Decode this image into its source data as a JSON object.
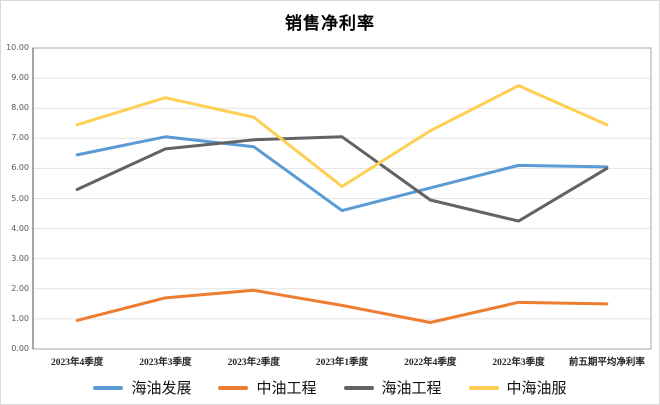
{
  "chart_data": {
    "type": "line",
    "title": "销售净利率",
    "categories": [
      "2023年4季度",
      "2023年3季度",
      "2023年2季度",
      "2023年1季度",
      "2022年4季度",
      "2022年3季度",
      "前五期平均净利率"
    ],
    "series": [
      {
        "name": "海油发展",
        "color": "#5B9BD5",
        "values": [
          6.45,
          7.05,
          6.72,
          4.6,
          5.35,
          6.1,
          6.05
        ]
      },
      {
        "name": "中油工程",
        "color": "#ED7D31",
        "values": [
          0.95,
          1.7,
          1.95,
          1.45,
          0.88,
          1.55,
          1.5
        ]
      },
      {
        "name": "海油工程",
        "color": "#636363",
        "values": [
          5.3,
          6.65,
          6.95,
          7.05,
          4.95,
          4.25,
          6.0
        ]
      },
      {
        "name": "中海油服",
        "color": "#FFCE54",
        "values": [
          7.45,
          8.35,
          7.7,
          5.4,
          7.25,
          8.75,
          7.45
        ]
      }
    ],
    "ylim": [
      0,
      10
    ],
    "ytick_labels": [
      "0.00",
      "1.00",
      "2.00",
      "3.00",
      "4.00",
      "5.00",
      "6.00",
      "7.00",
      "8.00",
      "9.00",
      "10.00"
    ],
    "grid": true,
    "legend_position": "bottom",
    "colors": {
      "gridline": "#e3e3e3",
      "plot_border": "#a6a6a6",
      "title_text": "#000000",
      "ytick_text": "#595959",
      "xtick_text": "#262626"
    }
  }
}
